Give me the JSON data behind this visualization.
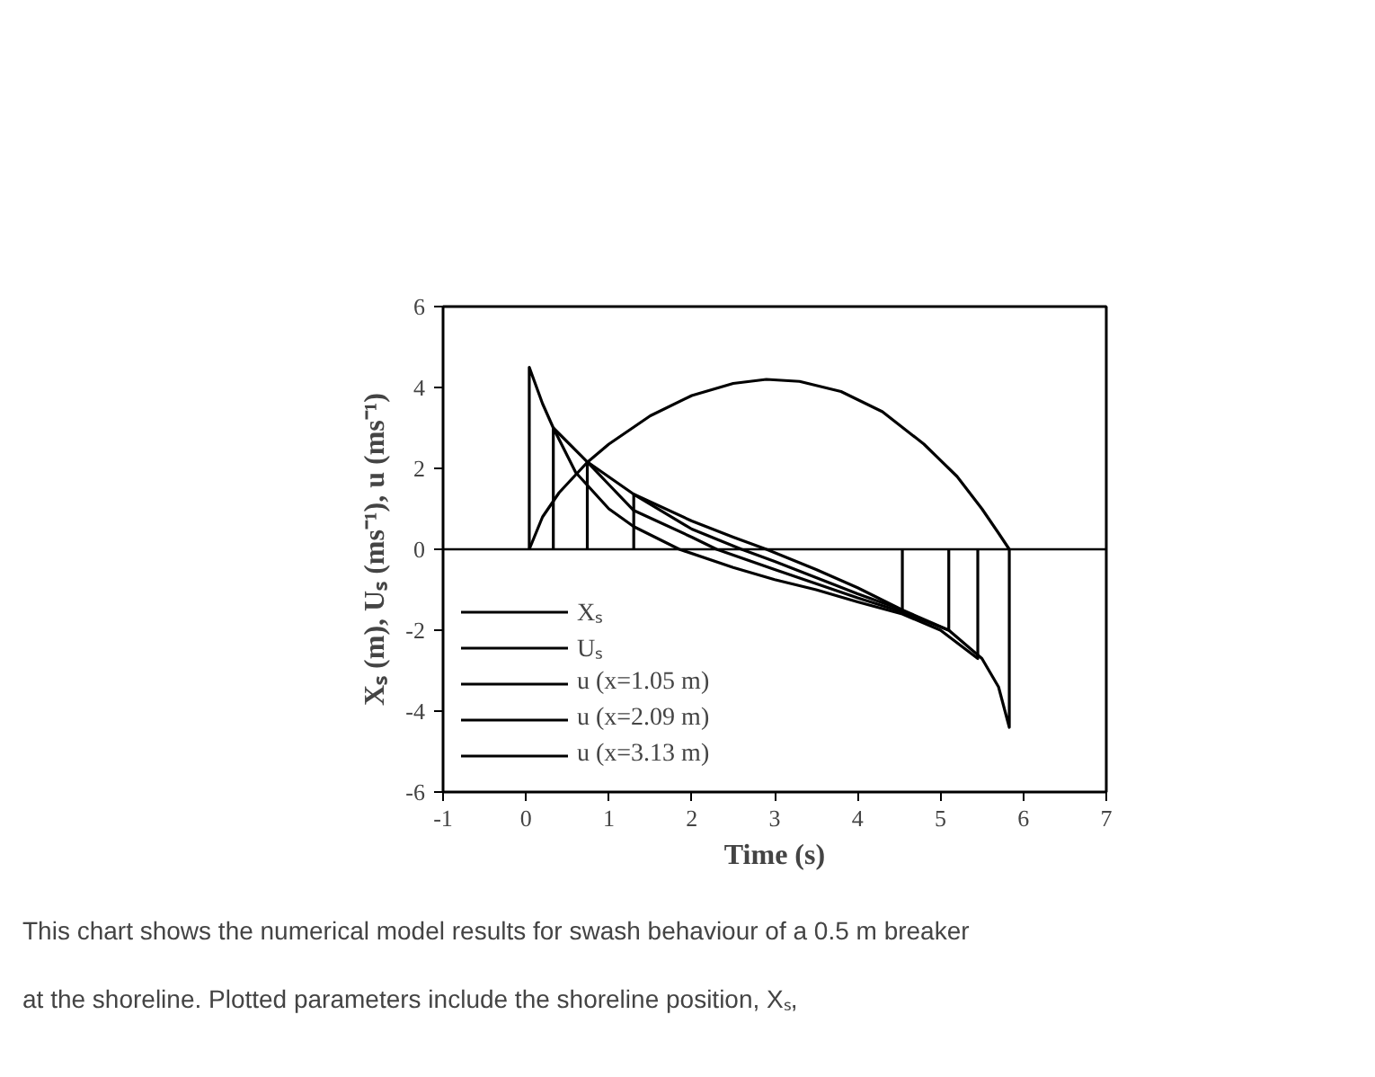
{
  "chart_data": {
    "type": "line",
    "xlabel": "Time (s)",
    "ylabel": "Xₛ (m), Uₛ (ms⁻¹), u (ms⁻¹)",
    "xlim": [
      -1,
      7
    ],
    "ylim": [
      -6,
      6
    ],
    "xticks": [
      -1,
      0,
      1,
      2,
      3,
      4,
      5,
      6,
      7
    ],
    "yticks": [
      -6,
      -4,
      -2,
      0,
      2,
      4,
      6
    ],
    "grid": false,
    "legend": "bottom left",
    "line_style": "solid",
    "marker": "none",
    "ref_lines": [
      {
        "axis": "y",
        "value": 0,
        "color": "#000000"
      }
    ],
    "series": [
      {
        "name": "Xₛ",
        "color": "#000000",
        "x": [
          0.04,
          0.2,
          0.4,
          0.74,
          1.0,
          1.5,
          2.0,
          2.5,
          2.9,
          3.3,
          3.8,
          4.3,
          4.8,
          5.2,
          5.5,
          5.7,
          5.83
        ],
        "values": [
          0,
          0.8,
          1.4,
          2.15,
          2.6,
          3.3,
          3.8,
          4.1,
          4.2,
          4.15,
          3.9,
          3.4,
          2.6,
          1.8,
          1.0,
          0.4,
          0
        ]
      },
      {
        "name": "Uₛ",
        "color": "#000000",
        "x": [
          0.04,
          0.04,
          0.2,
          0.33,
          0.74,
          1.3,
          2.0,
          2.5,
          2.9,
          3.5,
          4.0,
          4.54,
          5.1,
          5.5,
          5.7,
          5.83,
          5.83
        ],
        "values": [
          0,
          4.5,
          3.6,
          3.0,
          2.16,
          1.36,
          0.7,
          0.3,
          0,
          -0.5,
          -0.95,
          -1.5,
          -2.0,
          -2.7,
          -3.4,
          -4.4,
          0
        ]
      },
      {
        "name": "u (x=1.05 m)",
        "color": "#000000",
        "x": [
          0.33,
          0.33,
          0.6,
          1.0,
          1.3,
          1.85,
          2.5,
          3.0,
          3.5,
          4.0,
          4.54,
          5.0,
          5.45,
          5.45
        ],
        "values": [
          0,
          3.0,
          1.9,
          1.0,
          0.56,
          0,
          -0.45,
          -0.75,
          -1.0,
          -1.3,
          -1.6,
          -2.0,
          -2.7,
          0
        ]
      },
      {
        "name": "u (x=2.09 m)",
        "color": "#000000",
        "x": [
          0.74,
          0.74,
          1.0,
          1.3,
          2.0,
          2.3,
          3.0,
          3.5,
          4.0,
          4.54,
          5.1,
          5.1
        ],
        "values": [
          0,
          2.16,
          1.6,
          0.96,
          0.3,
          0,
          -0.5,
          -0.85,
          -1.2,
          -1.55,
          -2.0,
          0
        ]
      },
      {
        "name": "u (x=3.13 m)",
        "color": "#000000",
        "x": [
          1.3,
          1.3,
          2.0,
          2.6,
          3.0,
          3.5,
          4.0,
          4.54,
          4.54
        ],
        "values": [
          0,
          1.36,
          0.5,
          0,
          -0.3,
          -0.7,
          -1.1,
          -1.5,
          0
        ]
      }
    ],
    "annotations": [
      "This chart shows the numerical model results for swash behaviour of a 0.5 m breaker at the shoreline.  Plotted parameters include the shoreline position, Xₛ,"
    ]
  }
}
